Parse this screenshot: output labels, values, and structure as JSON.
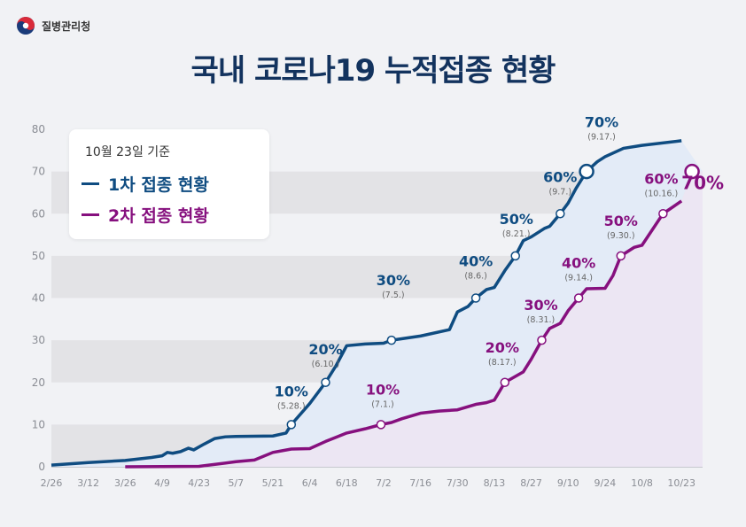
{
  "org": {
    "name": "질병관리청"
  },
  "title": "국내 코로나19 누적접종 현황",
  "legend": {
    "note": "10월 23일 기준",
    "first_label": "1차 접종 현황",
    "second_label": "2차 접종 현황"
  },
  "colors": {
    "first": "#0f4c81",
    "second": "#86107e",
    "first_fill": "#e3ebf7",
    "second_fill": "#ece6f3"
  },
  "chart_data": {
    "type": "area",
    "title": "국내 코로나19 누적접종 현황",
    "xlabel": "",
    "ylabel": "",
    "ylim": [
      0,
      80
    ],
    "yticks": [
      0,
      10,
      20,
      30,
      40,
      50,
      60,
      70,
      80
    ],
    "x_tick_labels": [
      "2/26",
      "3/12",
      "3/26",
      "4/9",
      "4/23",
      "5/7",
      "5/21",
      "6/4",
      "6/18",
      "7/2",
      "7/16",
      "7/30",
      "8/13",
      "8/27",
      "9/10",
      "9/24",
      "10/8",
      "10/23"
    ],
    "grid": "alternating horizontal bands",
    "series": [
      {
        "name": "1차 접종 현황",
        "points": [
          [
            "2/26",
            0.4
          ],
          [
            "3/12",
            1.0
          ],
          [
            "3/26",
            1.5
          ],
          [
            "4/5",
            2.2
          ],
          [
            "4/9",
            2.6
          ],
          [
            "4/11",
            3.4
          ],
          [
            "4/13",
            3.2
          ],
          [
            "4/16",
            3.6
          ],
          [
            "4/19",
            4.4
          ],
          [
            "4/21",
            4.0
          ],
          [
            "4/25",
            5.4
          ],
          [
            "4/29",
            6.7
          ],
          [
            "5/3",
            7.1
          ],
          [
            "5/7",
            7.2
          ],
          [
            "5/21",
            7.3
          ],
          [
            "5/26",
            8.0
          ],
          [
            "5/28",
            10
          ],
          [
            "6/4",
            15
          ],
          [
            "6/10",
            20
          ],
          [
            "6/14",
            24
          ],
          [
            "6/18",
            28.7
          ],
          [
            "6/25",
            29.1
          ],
          [
            "7/2",
            29.3
          ],
          [
            "7/5",
            30
          ],
          [
            "7/16",
            31.0
          ],
          [
            "7/27",
            32.5
          ],
          [
            "7/30",
            36.7
          ],
          [
            "8/3",
            38.0
          ],
          [
            "8/6",
            40
          ],
          [
            "8/10",
            42.0
          ],
          [
            "8/13",
            42.5
          ],
          [
            "8/17",
            46.5
          ],
          [
            "8/21",
            50
          ],
          [
            "8/24",
            53.6
          ],
          [
            "8/27",
            54.5
          ],
          [
            "9/1",
            56.5
          ],
          [
            "9/3",
            57.0
          ],
          [
            "9/7",
            60
          ],
          [
            "9/10",
            62.5
          ],
          [
            "9/13",
            66
          ],
          [
            "9/17",
            70
          ],
          [
            "9/21",
            72.3
          ],
          [
            "9/24",
            73.5
          ],
          [
            "10/1",
            75.5
          ],
          [
            "10/8",
            76.2
          ],
          [
            "10/23",
            77.3
          ]
        ],
        "labels": [
          {
            "pct": "10%",
            "date": "(5.28.)"
          },
          {
            "pct": "20%",
            "date": "(6.10.)"
          },
          {
            "pct": "30%",
            "date": "(7.5.)"
          },
          {
            "pct": "40%",
            "date": "(8.6.)"
          },
          {
            "pct": "50%",
            "date": "(8.21.)"
          },
          {
            "pct": "60%",
            "date": "(9.7.)"
          },
          {
            "pct": "70%",
            "date": "(9.17.)"
          }
        ]
      },
      {
        "name": "2차 접종 현황",
        "points": [
          [
            "3/26",
            0
          ],
          [
            "4/23",
            0.1
          ],
          [
            "5/7",
            1.2
          ],
          [
            "5/14",
            1.6
          ],
          [
            "5/21",
            3.4
          ],
          [
            "5/28",
            4.2
          ],
          [
            "6/4",
            4.3
          ],
          [
            "6/10",
            6.0
          ],
          [
            "6/18",
            8.0
          ],
          [
            "6/25",
            9.0
          ],
          [
            "7/1",
            10
          ],
          [
            "7/5",
            10.5
          ],
          [
            "7/9",
            11.4
          ],
          [
            "7/16",
            12.7
          ],
          [
            "7/23",
            13.2
          ],
          [
            "7/30",
            13.5
          ],
          [
            "8/6",
            14.8
          ],
          [
            "8/10",
            15.2
          ],
          [
            "8/13",
            15.8
          ],
          [
            "8/17",
            20
          ],
          [
            "8/24",
            22.5
          ],
          [
            "8/27",
            25.5
          ],
          [
            "8/31",
            30
          ],
          [
            "9/3",
            32.8
          ],
          [
            "9/7",
            34.0
          ],
          [
            "9/10",
            37.0
          ],
          [
            "9/12",
            38.5
          ],
          [
            "9/14",
            40
          ],
          [
            "9/17",
            42.2
          ],
          [
            "9/24",
            42.3
          ],
          [
            "9/27",
            45.3
          ],
          [
            "9/30",
            50
          ],
          [
            "10/5",
            52.0
          ],
          [
            "10/8",
            52.5
          ],
          [
            "10/16",
            60
          ],
          [
            "10/23",
            63.0
          ],
          [
            "10/27",
            70
          ]
        ],
        "labels": [
          {
            "pct": "10%",
            "date": "(7.1.)"
          },
          {
            "pct": "20%",
            "date": "(8.17.)"
          },
          {
            "pct": "30%",
            "date": "(8.31.)"
          },
          {
            "pct": "40%",
            "date": "(9.14.)"
          },
          {
            "pct": "50%",
            "date": "(9.30.)"
          },
          {
            "pct": "60%",
            "date": "(10.16.)"
          },
          {
            "pct": "70%",
            "date": ""
          }
        ]
      }
    ]
  }
}
